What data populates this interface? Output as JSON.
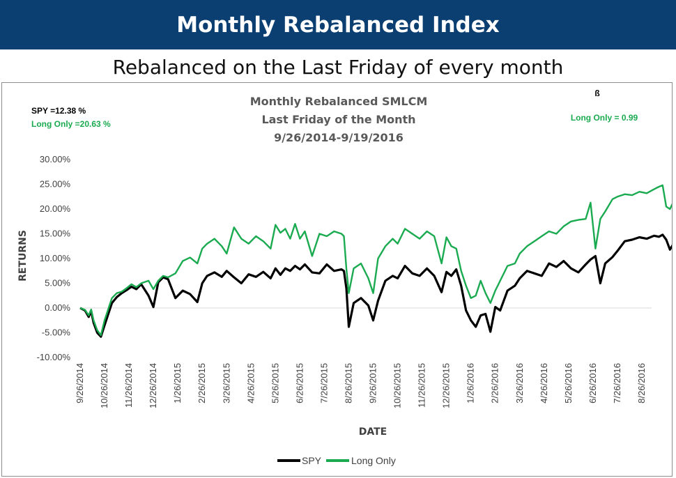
{
  "header": {
    "title": "Monthly Rebalanced Index",
    "subtitle": "Rebalanced on the Last Friday of every month"
  },
  "annotations": {
    "spy_label": "SPY =12.38 %",
    "long_label": "Long Only =20.63 %",
    "beta_symbol": "ß",
    "beta_label": "Long Only = 0.99",
    "colors": {
      "spy": "#000000",
      "long": "#1aaa50"
    }
  },
  "chart_data": {
    "type": "line",
    "title": [
      "Monthly Rebalanced SMLCM",
      "Last Friday of the Month",
      "9/26/2014-9/19/2016"
    ],
    "xlabel": "DATE",
    "ylabel": "RETURNS",
    "ylim": [
      -10,
      30
    ],
    "yticks": [
      -10,
      -5,
      0,
      5,
      10,
      15,
      20,
      25,
      30
    ],
    "ytick_labels": [
      "-10.00%",
      "-5.00%",
      "0.00%",
      "5.00%",
      "10.00%",
      "15.00%",
      "20.00%",
      "25.00%",
      "30.00%"
    ],
    "xticks": [
      "9/26/2014",
      "10/26/2014",
      "11/26/2014",
      "12/26/2014",
      "1/26/2015",
      "2/26/2015",
      "3/26/2015",
      "4/26/2015",
      "5/26/2015",
      "6/26/2015",
      "7/26/2015",
      "8/26/2015",
      "9/26/2015",
      "10/26/2015",
      "11/26/2015",
      "12/26/2015",
      "1/26/2016",
      "2/26/2016",
      "3/26/2016",
      "4/26/2016",
      "5/26/2016",
      "6/26/2016",
      "7/26/2016",
      "8/26/2016"
    ],
    "grid": false,
    "legend": "bottom",
    "series": [
      {
        "name": "SPY",
        "color": "#000000",
        "x": [
          0.0,
          0.2,
          0.35,
          0.45,
          0.55,
          0.7,
          0.85,
          1.0,
          1.3,
          1.5,
          1.7,
          1.9,
          2.1,
          2.3,
          2.5,
          2.8,
          3.0,
          3.2,
          3.4,
          3.6,
          3.9,
          4.2,
          4.5,
          4.8,
          5.0,
          5.2,
          5.5,
          5.8,
          6.0,
          6.3,
          6.6,
          6.9,
          7.2,
          7.5,
          7.8,
          8.0,
          8.2,
          8.4,
          8.6,
          8.8,
          9.0,
          9.2,
          9.5,
          9.8,
          10.1,
          10.4,
          10.7,
          10.8,
          10.9,
          11.0,
          11.2,
          11.5,
          11.8,
          12.0,
          12.2,
          12.5,
          12.8,
          13.0,
          13.3,
          13.6,
          13.9,
          14.2,
          14.5,
          14.8,
          15.0,
          15.2,
          15.4,
          15.6,
          15.8,
          16.0,
          16.2,
          16.4,
          16.6,
          16.8,
          17.0,
          17.2,
          17.5,
          17.8,
          18.0,
          18.3,
          18.6,
          18.9,
          19.2,
          19.5,
          19.8,
          20.1,
          20.4,
          20.7,
          20.9,
          21.1,
          21.3,
          21.5,
          21.8,
          22.0,
          22.3,
          22.6,
          22.9,
          23.2,
          23.5,
          23.7,
          23.85,
          24.0,
          24.15,
          24.3,
          24.4
        ],
        "y": [
          0.0,
          -0.5,
          -1.8,
          -0.6,
          -3.0,
          -5.0,
          -5.8,
          -3.5,
          1.0,
          2.2,
          3.0,
          3.6,
          4.3,
          3.8,
          4.8,
          2.5,
          0.2,
          5.2,
          6.2,
          5.8,
          2.0,
          3.5,
          2.8,
          1.2,
          5.0,
          6.5,
          7.2,
          6.3,
          7.5,
          6.2,
          5.0,
          6.8,
          6.3,
          7.3,
          6.0,
          8.0,
          6.7,
          8.0,
          7.5,
          8.5,
          7.8,
          8.8,
          7.2,
          7.0,
          8.8,
          7.5,
          7.8,
          7.5,
          4.0,
          -3.8,
          1.0,
          2.0,
          0.5,
          -2.5,
          1.5,
          5.5,
          6.5,
          6.0,
          8.5,
          7.0,
          6.5,
          8.0,
          6.5,
          3.2,
          7.3,
          6.5,
          7.8,
          4.5,
          -0.5,
          -2.5,
          -3.8,
          -1.5,
          -1.2,
          -4.8,
          0.2,
          -0.5,
          3.5,
          4.5,
          6.0,
          7.5,
          7.0,
          6.5,
          9.0,
          8.3,
          9.5,
          8.0,
          7.2,
          8.8,
          9.8,
          10.5,
          5.0,
          9.0,
          10.3,
          11.5,
          13.5,
          13.8,
          14.3,
          14.0,
          14.6,
          14.4,
          14.8,
          13.8,
          11.8,
          13.0,
          12.38
        ]
      },
      {
        "name": "Long Only",
        "color": "#1aaa50",
        "x": [
          0.0,
          0.2,
          0.35,
          0.45,
          0.55,
          0.7,
          0.85,
          1.0,
          1.3,
          1.5,
          1.7,
          1.9,
          2.1,
          2.3,
          2.5,
          2.8,
          3.0,
          3.2,
          3.4,
          3.6,
          3.9,
          4.2,
          4.5,
          4.8,
          5.0,
          5.2,
          5.5,
          5.8,
          6.0,
          6.3,
          6.6,
          6.9,
          7.2,
          7.5,
          7.8,
          8.0,
          8.2,
          8.4,
          8.6,
          8.8,
          9.0,
          9.2,
          9.5,
          9.8,
          10.1,
          10.4,
          10.7,
          10.8,
          10.9,
          11.0,
          11.2,
          11.5,
          11.8,
          12.0,
          12.2,
          12.5,
          12.8,
          13.0,
          13.3,
          13.6,
          13.9,
          14.2,
          14.5,
          14.8,
          15.0,
          15.2,
          15.4,
          15.6,
          15.8,
          16.0,
          16.2,
          16.4,
          16.6,
          16.8,
          17.0,
          17.2,
          17.5,
          17.8,
          18.0,
          18.3,
          18.6,
          18.9,
          19.2,
          19.5,
          19.8,
          20.1,
          20.4,
          20.7,
          20.9,
          21.1,
          21.3,
          21.5,
          21.8,
          22.0,
          22.3,
          22.6,
          22.9,
          23.2,
          23.5,
          23.7,
          23.85,
          24.0,
          24.15,
          24.3,
          24.4
        ],
        "y": [
          0.0,
          -0.4,
          -1.5,
          -0.3,
          -2.5,
          -4.5,
          -5.5,
          -2.5,
          2.0,
          3.0,
          3.3,
          4.0,
          4.8,
          4.2,
          5.0,
          5.5,
          3.8,
          5.5,
          6.5,
          6.2,
          7.0,
          9.5,
          10.2,
          9.0,
          12.0,
          13.0,
          14.0,
          12.5,
          11.0,
          16.3,
          14.0,
          13.0,
          14.5,
          13.5,
          12.0,
          16.8,
          15.2,
          16.0,
          14.0,
          17.0,
          14.0,
          15.5,
          10.5,
          15.0,
          14.5,
          15.5,
          15.0,
          14.5,
          8.0,
          3.0,
          8.0,
          9.0,
          6.0,
          3.0,
          10.0,
          12.5,
          14.0,
          13.0,
          16.0,
          15.0,
          14.0,
          15.5,
          14.5,
          9.0,
          14.3,
          12.5,
          12.0,
          7.5,
          4.5,
          2.0,
          2.5,
          5.5,
          3.0,
          1.0,
          3.5,
          5.5,
          8.5,
          9.0,
          11.0,
          12.5,
          13.5,
          14.5,
          15.5,
          15.0,
          16.5,
          17.5,
          17.8,
          18.0,
          21.3,
          12.0,
          18.0,
          19.5,
          22.0,
          22.5,
          23.0,
          22.8,
          23.5,
          23.2,
          24.0,
          24.5,
          24.8,
          20.5,
          20.0,
          21.5,
          20.63
        ]
      }
    ]
  }
}
